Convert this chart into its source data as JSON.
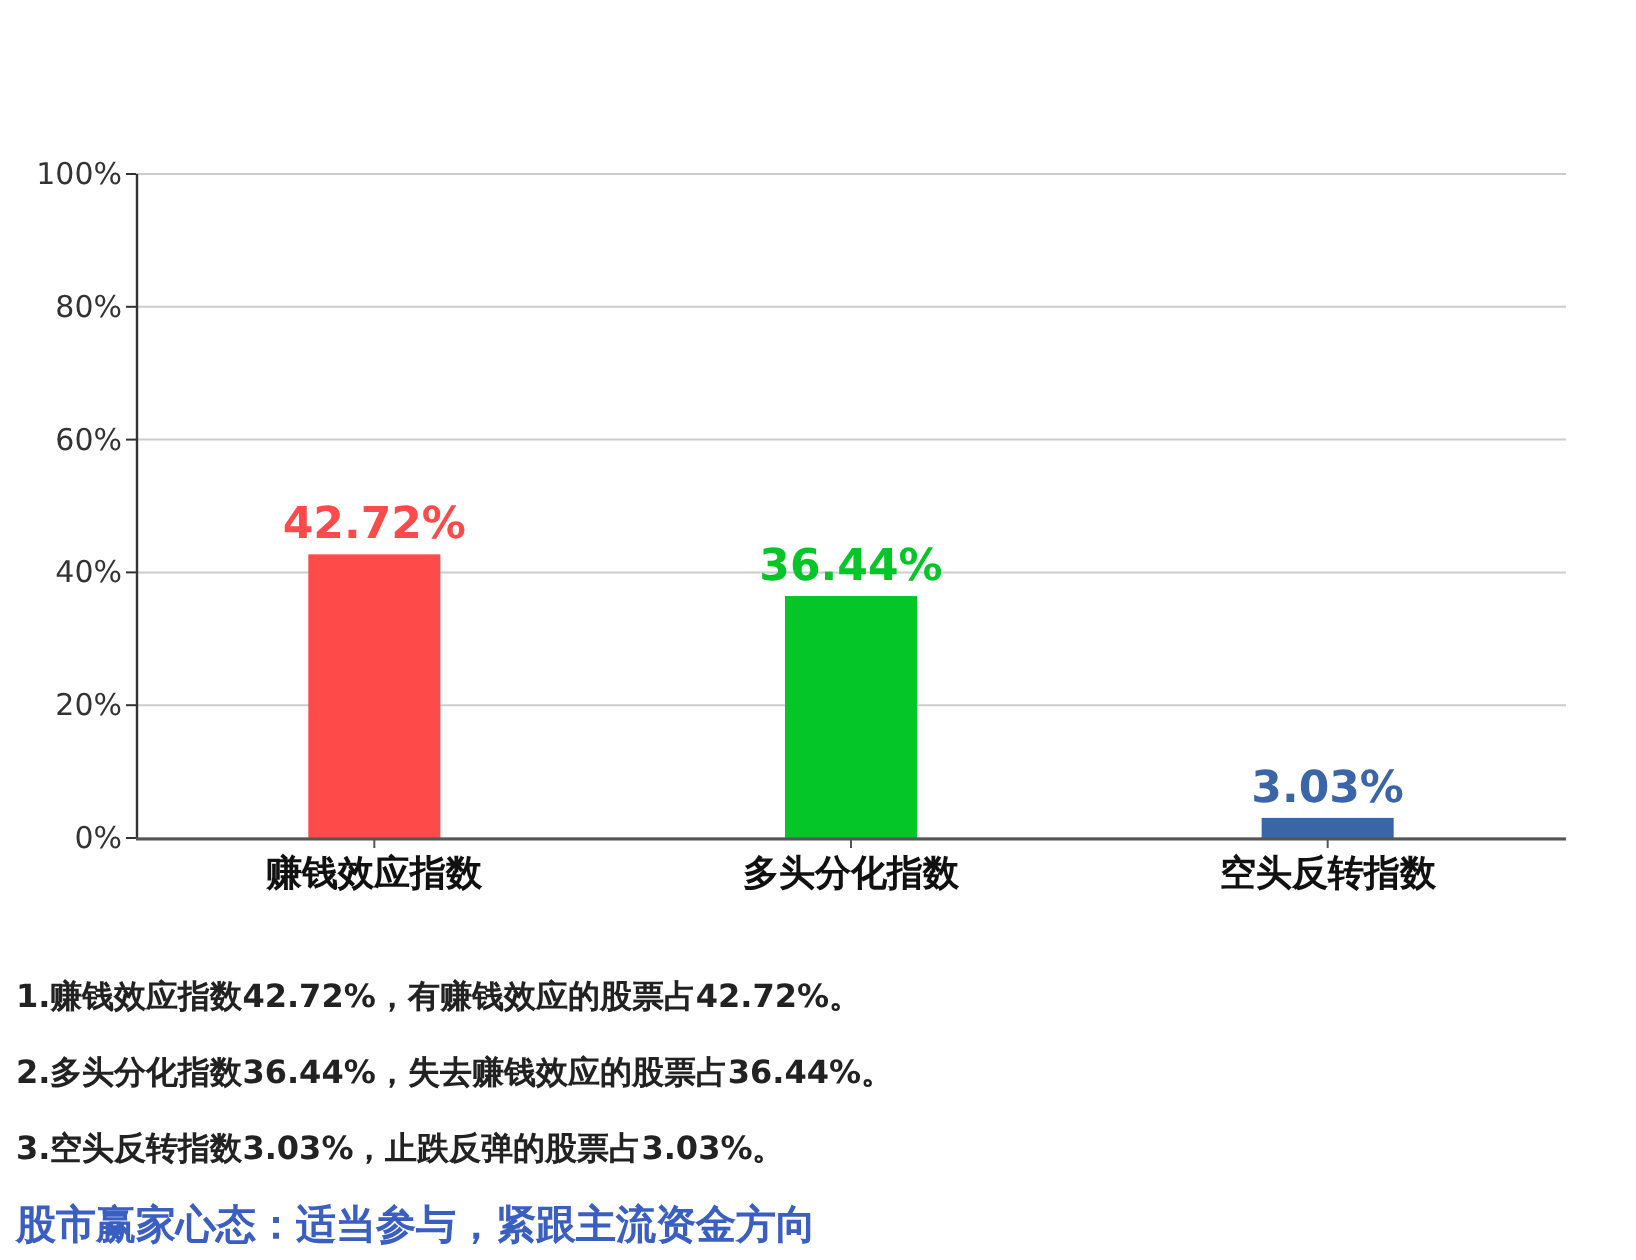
{
  "chart_data": {
    "type": "bar",
    "categories": [
      "赚钱效应指数",
      "多头分化指数",
      "空头反转指数"
    ],
    "values": [
      42.72,
      36.44,
      3.03
    ],
    "colors": [
      "#ff4a4a",
      "#05c629",
      "#3a66a8"
    ],
    "value_labels": [
      "42.72%",
      "36.44%",
      "3.03%"
    ],
    "ylim": [
      0,
      100
    ],
    "yticks": [
      {
        "value": 0,
        "label": "0%"
      },
      {
        "value": 20,
        "label": "20%"
      },
      {
        "value": 40,
        "label": "40%"
      },
      {
        "value": 60,
        "label": "60%"
      },
      {
        "value": 80,
        "label": "80%"
      },
      {
        "value": 100,
        "label": "100%"
      }
    ],
    "grid": "y",
    "annotations": [
      "1.赚钱效应指数42.72%，有赚钱效应的股票占42.72%。",
      "2.多头分化指数36.44%，失去赚钱效应的股票占36.44%。",
      "3.空头反转指数3.03%，止跌反弹的股票占3.03%。",
      "股市赢家心态：适当参与，紧跟主流资金方向"
    ]
  }
}
